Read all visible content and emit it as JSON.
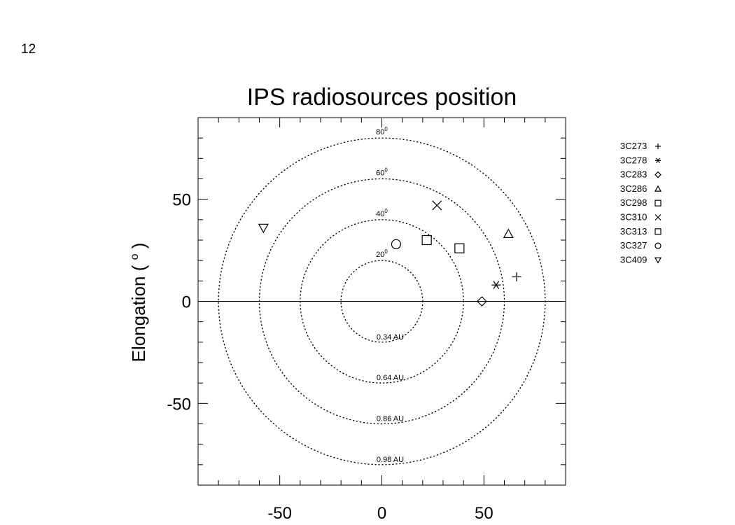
{
  "page_number": "12",
  "chart_data": {
    "type": "scatter",
    "title": "IPS radiosources position",
    "ylabel": "Elongation (",
    "ylabel_superscript": "o",
    "ylabel_close": ")",
    "xlabel": "",
    "xlim": [
      -90,
      90
    ],
    "ylim": [
      -90,
      90
    ],
    "x_ticks": [
      -50,
      0,
      50
    ],
    "y_ticks": [
      -50,
      0,
      50
    ],
    "grid": false,
    "legend_position": "right, outside plot",
    "reference_line": {
      "y": 0
    },
    "rings": [
      {
        "radius": 20,
        "style": "dotted",
        "angle_label": "20",
        "distance_label": "0.34 AU"
      },
      {
        "radius": 40,
        "style": "dotted",
        "angle_label": "40",
        "distance_label": "0.64 AU"
      },
      {
        "radius": 60,
        "style": "dotted",
        "angle_label": "60",
        "distance_label": "0.86 AU"
      },
      {
        "radius": 80,
        "style": "dotted",
        "angle_label": "80",
        "distance_label": "0.98 AU"
      }
    ],
    "ring_label_degree_symbol": "0",
    "series": [
      {
        "name": "3C273",
        "marker": "plus",
        "x": 66,
        "y": 12
      },
      {
        "name": "3C278",
        "marker": "asterisk",
        "x": 56,
        "y": 8
      },
      {
        "name": "3C283",
        "marker": "diamond",
        "x": 49,
        "y": 0
      },
      {
        "name": "3C286",
        "marker": "triangle",
        "x": 62,
        "y": 33
      },
      {
        "name": "3C298",
        "marker": "square",
        "x": 22,
        "y": 30
      },
      {
        "name": "3C310",
        "marker": "cross",
        "x": 27,
        "y": 47
      },
      {
        "name": "3C313",
        "marker": "square",
        "x": 38,
        "y": 26
      },
      {
        "name": "3C327",
        "marker": "circle",
        "x": 7,
        "y": 28
      },
      {
        "name": "3C409",
        "marker": "triangle-down",
        "x": -58,
        "y": 36
      }
    ]
  }
}
